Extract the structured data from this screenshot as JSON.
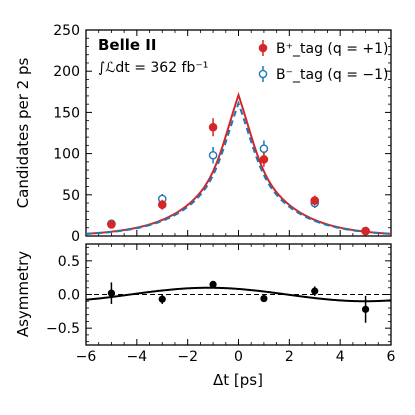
{
  "chart_data": [
    {
      "type": "scatter",
      "panel": "main",
      "xlabel": "Δt [ps]",
      "ylabel": "Candidates per 2 ps",
      "xlim": [
        -6,
        6
      ],
      "ylim": [
        0,
        250
      ],
      "x_ticks": [
        "−6",
        "−4",
        "−2",
        "0",
        "2",
        "4",
        "6"
      ],
      "y_ticks": [
        "0",
        "50",
        "100",
        "150",
        "200",
        "250"
      ],
      "experiment_label": "Belle II",
      "luminosity_label": "∫ℒdt = 362 fb⁻¹",
      "legend_position": "top-right",
      "series": [
        {
          "name": "B⁺_tag (q = +1)",
          "marker": "filled-circle",
          "color": "#d62728",
          "x": [
            -5,
            -3,
            -1,
            1,
            3,
            5
          ],
          "y": [
            14,
            38,
            132,
            93,
            43,
            6
          ],
          "yerr": [
            4,
            6,
            11,
            9,
            6,
            3
          ],
          "fit_peak": 171
        },
        {
          "name": "B⁻_tag (q = −1)",
          "marker": "open-circle",
          "color": "#1f77b4",
          "line_style": "dashed",
          "x": [
            -5,
            -3,
            -1,
            1,
            3,
            5
          ],
          "y": [
            15,
            45,
            98,
            106,
            40,
            6
          ],
          "yerr": [
            4,
            6,
            10,
            10,
            6,
            3
          ],
          "fit_peak": 161
        }
      ]
    },
    {
      "type": "scatter",
      "panel": "asymmetry",
      "xlabel": "Δt [ps]",
      "ylabel": "Asymmetry",
      "xlim": [
        -6,
        6
      ],
      "ylim": [
        -0.75,
        0.75
      ],
      "y_ticks": [
        "−0.5",
        "0.0",
        "0.5"
      ],
      "points": {
        "x": [
          -5,
          -3,
          -1,
          1,
          3,
          5
        ],
        "y": [
          0.02,
          -0.07,
          0.15,
          -0.06,
          0.05,
          -0.22
        ],
        "yerr": [
          0.16,
          0.07,
          0.05,
          0.05,
          0.07,
          0.2
        ]
      },
      "fit_curve": {
        "amplitude": 0.1,
        "phase": 1.0
      },
      "reference_line": 0
    }
  ],
  "colors": {
    "plus": "#d62728",
    "minus": "#1f77b4",
    "black": "#000000"
  }
}
